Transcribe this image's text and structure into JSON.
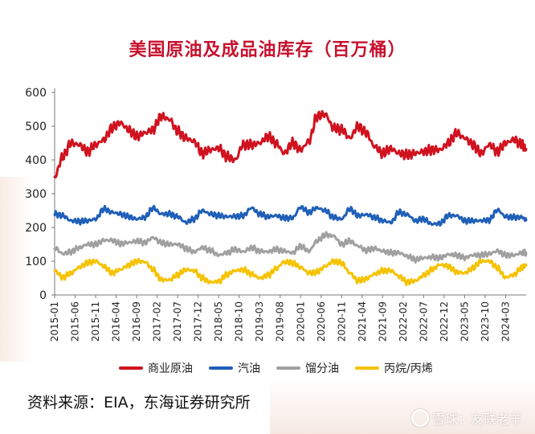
{
  "title": "美国原油及成品油库存（百万桶）",
  "source": "资料来源：EIA，东海证券研究所",
  "watermark": "雪球：友联老羊",
  "chart_data": {
    "type": "line",
    "title": "美国原油及成品油库存（百万桶）",
    "ylim": [
      0,
      600
    ],
    "yticks": [
      0,
      100,
      200,
      300,
      400,
      500,
      600
    ],
    "xrange": [
      "2015-01",
      "2024-08"
    ],
    "xticks": [
      "2015-01",
      "2015-06",
      "2015-11",
      "2016-04",
      "2016-09",
      "2017-02",
      "2017-07",
      "2017-12",
      "2018-05",
      "2018-10",
      "2019-03",
      "2019-08",
      "2020-01",
      "2020-06",
      "2020-11",
      "2021-04",
      "2021-09",
      "2022-02",
      "2022-07",
      "2022-12",
      "2023-05",
      "2023-10",
      "2024-03"
    ],
    "grid": false,
    "legend_position": "bottom",
    "series": [
      {
        "name": "商业原油",
        "color": "#d0121f",
        "points": [
          [
            "2015-01",
            350
          ],
          [
            "2015-03",
            410
          ],
          [
            "2015-05",
            450
          ],
          [
            "2015-07",
            445
          ],
          [
            "2015-09",
            425
          ],
          [
            "2015-11",
            445
          ],
          [
            "2016-01",
            460
          ],
          [
            "2016-03",
            495
          ],
          [
            "2016-05",
            510
          ],
          [
            "2016-07",
            490
          ],
          [
            "2016-09",
            470
          ],
          [
            "2016-11",
            480
          ],
          [
            "2017-01",
            490
          ],
          [
            "2017-03",
            530
          ],
          [
            "2017-05",
            520
          ],
          [
            "2017-07",
            485
          ],
          [
            "2017-09",
            465
          ],
          [
            "2017-11",
            455
          ],
          [
            "2018-01",
            420
          ],
          [
            "2018-03",
            430
          ],
          [
            "2018-05",
            435
          ],
          [
            "2018-07",
            410
          ],
          [
            "2018-09",
            400
          ],
          [
            "2018-11",
            445
          ],
          [
            "2019-01",
            445
          ],
          [
            "2019-03",
            450
          ],
          [
            "2019-05",
            470
          ],
          [
            "2019-07",
            450
          ],
          [
            "2019-09",
            420
          ],
          [
            "2019-11",
            450
          ],
          [
            "2020-01",
            430
          ],
          [
            "2020-03",
            455
          ],
          [
            "2020-05",
            530
          ],
          [
            "2020-07",
            535
          ],
          [
            "2020-09",
            495
          ],
          [
            "2020-11",
            490
          ],
          [
            "2021-01",
            465
          ],
          [
            "2021-03",
            500
          ],
          [
            "2021-05",
            480
          ],
          [
            "2021-07",
            440
          ],
          [
            "2021-09",
            420
          ],
          [
            "2021-11",
            433
          ],
          [
            "2022-01",
            420
          ],
          [
            "2022-03",
            415
          ],
          [
            "2022-05",
            420
          ],
          [
            "2022-07",
            425
          ],
          [
            "2022-09",
            430
          ],
          [
            "2022-11",
            430
          ],
          [
            "2023-01",
            450
          ],
          [
            "2023-03",
            480
          ],
          [
            "2023-05",
            465
          ],
          [
            "2023-07",
            445
          ],
          [
            "2023-09",
            420
          ],
          [
            "2023-11",
            445
          ],
          [
            "2024-01",
            425
          ],
          [
            "2024-03",
            450
          ],
          [
            "2024-05",
            460
          ],
          [
            "2024-07",
            445
          ],
          [
            "2024-08",
            432
          ]
        ]
      },
      {
        "name": "汽油",
        "color": "#1f5fb8",
        "points": [
          [
            "2015-01",
            240
          ],
          [
            "2015-03",
            235
          ],
          [
            "2015-05",
            220
          ],
          [
            "2015-07",
            218
          ],
          [
            "2015-09",
            220
          ],
          [
            "2015-11",
            225
          ],
          [
            "2016-01",
            255
          ],
          [
            "2016-03",
            245
          ],
          [
            "2016-05",
            240
          ],
          [
            "2016-07",
            232
          ],
          [
            "2016-09",
            225
          ],
          [
            "2016-11",
            230
          ],
          [
            "2017-01",
            258
          ],
          [
            "2017-03",
            240
          ],
          [
            "2017-05",
            240
          ],
          [
            "2017-07",
            232
          ],
          [
            "2017-09",
            215
          ],
          [
            "2017-11",
            225
          ],
          [
            "2018-01",
            250
          ],
          [
            "2018-03",
            240
          ],
          [
            "2018-05",
            235
          ],
          [
            "2018-07",
            232
          ],
          [
            "2018-09",
            233
          ],
          [
            "2018-11",
            235
          ],
          [
            "2019-01",
            258
          ],
          [
            "2019-03",
            240
          ],
          [
            "2019-05",
            232
          ],
          [
            "2019-07",
            235
          ],
          [
            "2019-09",
            228
          ],
          [
            "2019-11",
            228
          ],
          [
            "2020-01",
            260
          ],
          [
            "2020-03",
            245
          ],
          [
            "2020-05",
            258
          ],
          [
            "2020-07",
            250
          ],
          [
            "2020-09",
            230
          ],
          [
            "2020-11",
            225
          ],
          [
            "2021-01",
            255
          ],
          [
            "2021-03",
            235
          ],
          [
            "2021-05",
            238
          ],
          [
            "2021-07",
            230
          ],
          [
            "2021-09",
            220
          ],
          [
            "2021-11",
            215
          ],
          [
            "2022-01",
            245
          ],
          [
            "2022-03",
            238
          ],
          [
            "2022-05",
            220
          ],
          [
            "2022-07",
            225
          ],
          [
            "2022-09",
            210
          ],
          [
            "2022-11",
            212
          ],
          [
            "2023-01",
            235
          ],
          [
            "2023-03",
            235
          ],
          [
            "2023-05",
            220
          ],
          [
            "2023-07",
            220
          ],
          [
            "2023-09",
            220
          ],
          [
            "2023-11",
            222
          ],
          [
            "2024-01",
            252
          ],
          [
            "2024-03",
            232
          ],
          [
            "2024-05",
            230
          ],
          [
            "2024-07",
            230
          ],
          [
            "2024-08",
            222
          ]
        ]
      },
      {
        "name": "馏分油",
        "color": "#a0a0a0",
        "points": [
          [
            "2015-01",
            140
          ],
          [
            "2015-03",
            122
          ],
          [
            "2015-05",
            128
          ],
          [
            "2015-07",
            140
          ],
          [
            "2015-09",
            150
          ],
          [
            "2015-11",
            150
          ],
          [
            "2016-01",
            162
          ],
          [
            "2016-03",
            162
          ],
          [
            "2016-05",
            152
          ],
          [
            "2016-07",
            155
          ],
          [
            "2016-09",
            160
          ],
          [
            "2016-11",
            155
          ],
          [
            "2017-01",
            170
          ],
          [
            "2017-03",
            155
          ],
          [
            "2017-05",
            150
          ],
          [
            "2017-07",
            150
          ],
          [
            "2017-09",
            138
          ],
          [
            "2017-11",
            128
          ],
          [
            "2018-01",
            140
          ],
          [
            "2018-03",
            132
          ],
          [
            "2018-05",
            118
          ],
          [
            "2018-07",
            125
          ],
          [
            "2018-09",
            135
          ],
          [
            "2018-11",
            128
          ],
          [
            "2019-01",
            140
          ],
          [
            "2019-03",
            130
          ],
          [
            "2019-05",
            128
          ],
          [
            "2019-07",
            135
          ],
          [
            "2019-09",
            130
          ],
          [
            "2019-11",
            125
          ],
          [
            "2020-01",
            145
          ],
          [
            "2020-03",
            130
          ],
          [
            "2020-05",
            160
          ],
          [
            "2020-07",
            178
          ],
          [
            "2020-09",
            175
          ],
          [
            "2020-11",
            150
          ],
          [
            "2021-01",
            160
          ],
          [
            "2021-03",
            145
          ],
          [
            "2021-05",
            132
          ],
          [
            "2021-07",
            138
          ],
          [
            "2021-09",
            130
          ],
          [
            "2021-11",
            125
          ],
          [
            "2022-01",
            125
          ],
          [
            "2022-03",
            115
          ],
          [
            "2022-05",
            105
          ],
          [
            "2022-07",
            110
          ],
          [
            "2022-09",
            112
          ],
          [
            "2022-11",
            110
          ],
          [
            "2023-01",
            120
          ],
          [
            "2023-03",
            118
          ],
          [
            "2023-05",
            110
          ],
          [
            "2023-07",
            118
          ],
          [
            "2023-09",
            118
          ],
          [
            "2023-11",
            122
          ],
          [
            "2024-01",
            130
          ],
          [
            "2024-03",
            118
          ],
          [
            "2024-05",
            118
          ],
          [
            "2024-07",
            125
          ],
          [
            "2024-08",
            125
          ]
        ]
      },
      {
        "name": "丙烷/丙烯",
        "color": "#f5c200",
        "points": [
          [
            "2015-01",
            72
          ],
          [
            "2015-03",
            52
          ],
          [
            "2015-05",
            65
          ],
          [
            "2015-07",
            82
          ],
          [
            "2015-09",
            95
          ],
          [
            "2015-11",
            100
          ],
          [
            "2016-01",
            85
          ],
          [
            "2016-03",
            65
          ],
          [
            "2016-05",
            75
          ],
          [
            "2016-07",
            88
          ],
          [
            "2016-09",
            100
          ],
          [
            "2016-11",
            98
          ],
          [
            "2017-01",
            75
          ],
          [
            "2017-03",
            45
          ],
          [
            "2017-05",
            45
          ],
          [
            "2017-07",
            60
          ],
          [
            "2017-09",
            75
          ],
          [
            "2017-11",
            72
          ],
          [
            "2018-01",
            50
          ],
          [
            "2018-03",
            38
          ],
          [
            "2018-05",
            40
          ],
          [
            "2018-07",
            60
          ],
          [
            "2018-09",
            72
          ],
          [
            "2018-11",
            75
          ],
          [
            "2019-01",
            62
          ],
          [
            "2019-03",
            50
          ],
          [
            "2019-05",
            58
          ],
          [
            "2019-07",
            78
          ],
          [
            "2019-09",
            98
          ],
          [
            "2019-11",
            95
          ],
          [
            "2020-01",
            82
          ],
          [
            "2020-03",
            65
          ],
          [
            "2020-05",
            68
          ],
          [
            "2020-07",
            85
          ],
          [
            "2020-09",
            100
          ],
          [
            "2020-11",
            95
          ],
          [
            "2021-01",
            65
          ],
          [
            "2021-03",
            42
          ],
          [
            "2021-05",
            48
          ],
          [
            "2021-07",
            62
          ],
          [
            "2021-09",
            72
          ],
          [
            "2021-11",
            72
          ],
          [
            "2022-01",
            55
          ],
          [
            "2022-03",
            38
          ],
          [
            "2022-05",
            42
          ],
          [
            "2022-07",
            58
          ],
          [
            "2022-09",
            75
          ],
          [
            "2022-11",
            90
          ],
          [
            "2023-01",
            85
          ],
          [
            "2023-03",
            68
          ],
          [
            "2023-05",
            65
          ],
          [
            "2023-07",
            80
          ],
          [
            "2023-09",
            100
          ],
          [
            "2023-11",
            100
          ],
          [
            "2024-01",
            80
          ],
          [
            "2024-03",
            52
          ],
          [
            "2024-05",
            60
          ],
          [
            "2024-07",
            82
          ],
          [
            "2024-08",
            88
          ]
        ]
      }
    ]
  }
}
